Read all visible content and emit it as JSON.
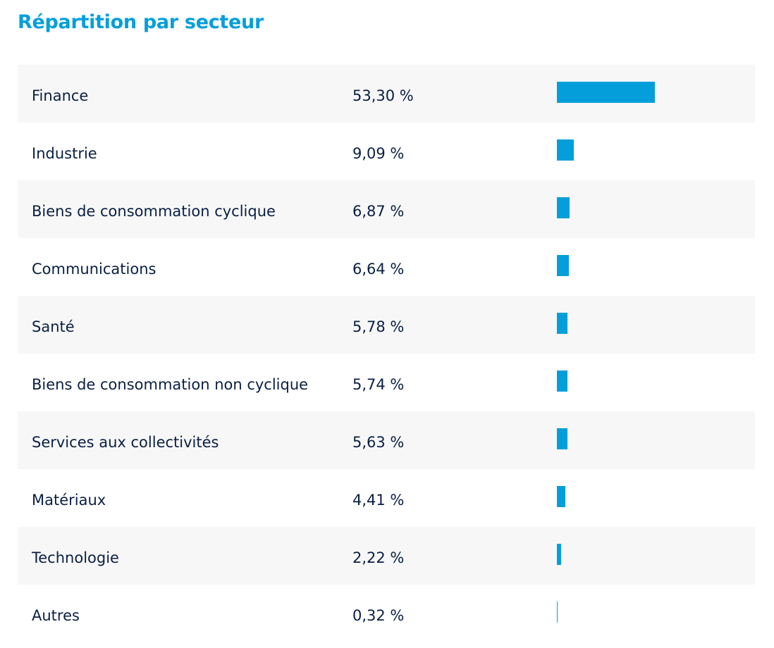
{
  "title": "Répartition par secteur",
  "chart_data": {
    "type": "bar",
    "orientation": "horizontal",
    "title": "Répartition par secteur",
    "unit": "%",
    "bar_color": "#049fda",
    "categories": [
      "Finance",
      "Industrie",
      "Biens de consommation cyclique",
      "Communications",
      "Santé",
      "Biens de consommation non cyclique",
      "Services aux collectivités",
      "Matériaux",
      "Technologie",
      "Autres"
    ],
    "values": [
      53.3,
      9.09,
      6.87,
      6.64,
      5.78,
      5.74,
      5.63,
      4.41,
      2.22,
      0.32
    ],
    "value_labels": [
      "53,30 %",
      "9,09 %",
      "6,87 %",
      "6,64 %",
      "5,78 %",
      "5,74 %",
      "5,63 %",
      "4,41 %",
      "2,22 %",
      "0,32 %"
    ],
    "xlim": [
      0,
      53.3
    ]
  }
}
